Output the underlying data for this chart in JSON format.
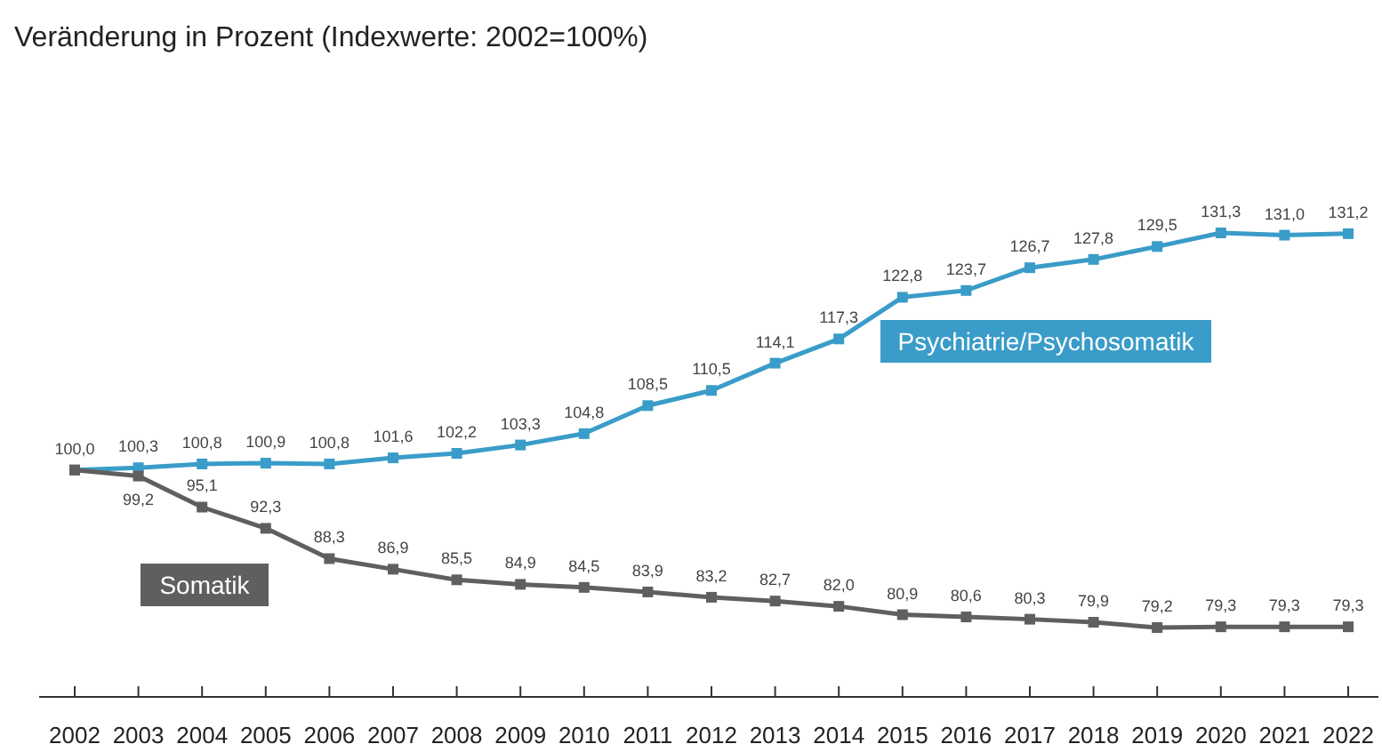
{
  "chart_data": {
    "type": "line",
    "title": "Veränderung in Prozent (Indexwerte: 2002=100%)",
    "categories": [
      "2002",
      "2003",
      "2004",
      "2005",
      "2006",
      "2007",
      "2008",
      "2009",
      "2010",
      "2011",
      "2012",
      "2013",
      "2014",
      "2015",
      "2016",
      "2017",
      "2018",
      "2019",
      "2020",
      "2021",
      "2022"
    ],
    "series": [
      {
        "name": "Psychiatrie/Psychosomatik",
        "color": "#3a9cc8",
        "values": [
          100.0,
          100.3,
          100.8,
          100.9,
          100.8,
          101.6,
          102.2,
          103.3,
          104.8,
          108.5,
          110.5,
          114.1,
          117.3,
          122.8,
          123.7,
          126.7,
          127.8,
          129.5,
          131.3,
          131.0,
          131.2
        ],
        "value_labels": [
          "100,0",
          "100,3",
          "100,8",
          "100,9",
          "100,8",
          "101,6",
          "102,2",
          "103,3",
          "104,8",
          "108,5",
          "110,5",
          "114,1",
          "117,3",
          "122,8",
          "123,7",
          "126,7",
          "127,8",
          "129,5",
          "131,3",
          "131,0",
          "131,2"
        ]
      },
      {
        "name": "Somatik",
        "color": "#5f5f5f",
        "values": [
          100.0,
          99.2,
          95.1,
          92.3,
          88.3,
          86.9,
          85.5,
          84.9,
          84.5,
          83.9,
          83.2,
          82.7,
          82.0,
          80.9,
          80.6,
          80.3,
          79.9,
          79.2,
          79.3,
          79.3,
          79.3
        ],
        "value_labels": [
          null,
          "99,2",
          "95,1",
          "92,3",
          "88,3",
          "86,9",
          "85,5",
          "84,9",
          "84,5",
          "83,9",
          "83,2",
          "82,7",
          "82,0",
          "80,9",
          "80,6",
          "80,3",
          "79,9",
          "79,2",
          "79,3",
          "79,3",
          "79,3"
        ]
      }
    ],
    "marker": "square",
    "legend": false
  }
}
